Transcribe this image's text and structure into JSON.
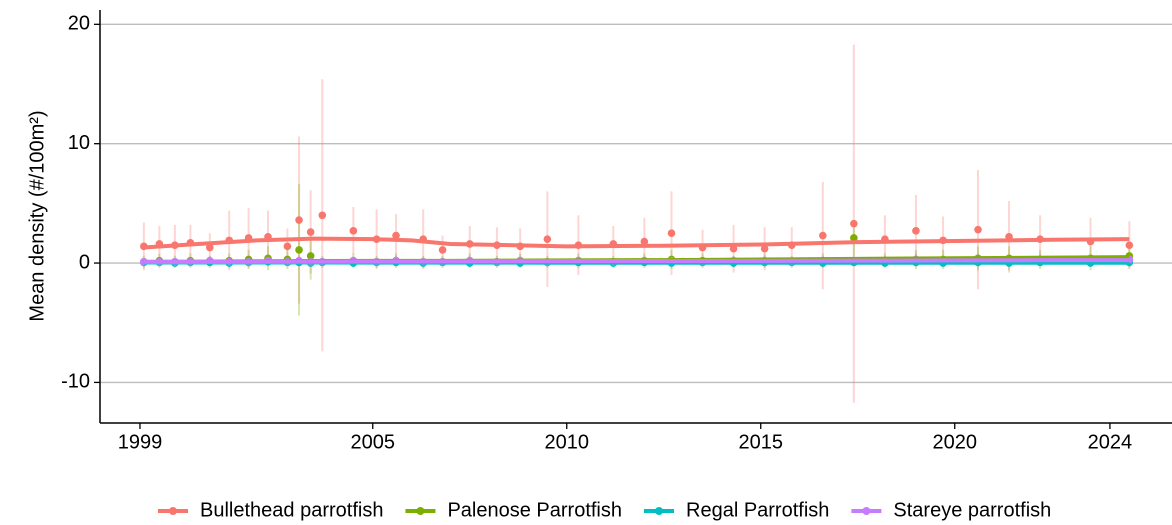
{
  "chart_data": {
    "type": "scatter",
    "y_label": "Mean density (#/100m²)",
    "xlim": [
      1997.97,
      2025.6
    ],
    "ylim": [
      -13.4,
      21.2
    ],
    "xticks": [
      1999,
      2005,
      2010,
      2015,
      2020,
      2024
    ],
    "yticks": [
      -10,
      0,
      10,
      20
    ],
    "grid": true,
    "legend": "bottom",
    "x": [
      1999.1,
      1999.5,
      1999.9,
      2000.3,
      2000.8,
      2001.3,
      2001.8,
      2002.3,
      2002.8,
      2003.1,
      2003.4,
      2003.7,
      2004.5,
      2005.1,
      2005.6,
      2006.3,
      2006.8,
      2007.5,
      2008.2,
      2008.8,
      2009.5,
      2010.3,
      2011.2,
      2012.0,
      2012.7,
      2013.5,
      2014.3,
      2015.1,
      2015.8,
      2016.6,
      2017.4,
      2018.2,
      2019.0,
      2019.7,
      2020.6,
      2021.4,
      2022.2,
      2023.5,
      2024.5
    ],
    "trend_x": [
      1999.1,
      2000.5,
      2002.0,
      2003.5,
      2005.0,
      2006.0,
      2007.0,
      2008.5,
      2010.0,
      2012.5,
      2015.0,
      2017.5,
      2020.0,
      2022.5,
      2024.5
    ],
    "series": [
      {
        "name": "Bullethead parrotfish",
        "color": "#F8766D",
        "values": [
          1.4,
          1.6,
          1.5,
          1.7,
          1.3,
          1.9,
          2.1,
          2.2,
          1.4,
          3.6,
          2.6,
          4.0,
          2.7,
          2.0,
          2.3,
          2.0,
          1.1,
          1.6,
          1.5,
          1.4,
          2.0,
          1.5,
          1.6,
          1.8,
          2.5,
          1.3,
          1.2,
          1.2,
          1.5,
          2.3,
          3.3,
          2.0,
          2.7,
          1.9,
          2.8,
          2.2,
          2.0,
          1.8,
          1.5
        ],
        "errors": [
          2,
          1.5,
          1.7,
          1.5,
          1.2,
          2.5,
          2.5,
          2.2,
          1.5,
          7,
          3.5,
          11.4,
          2,
          2.5,
          1.8,
          2.5,
          1.2,
          1.5,
          1.5,
          1.5,
          4,
          2.5,
          1.5,
          2,
          3.5,
          1.5,
          2,
          1.8,
          1.5,
          4.5,
          15,
          2,
          3,
          2,
          5,
          3,
          2,
          2,
          2
        ],
        "trend": [
          1.3,
          1.6,
          1.9,
          2.05,
          2.0,
          1.9,
          1.6,
          1.5,
          1.4,
          1.45,
          1.55,
          1.75,
          1.85,
          1.95,
          2.0
        ]
      },
      {
        "name": "Palenose Parrotfish",
        "color": "#7CAE00",
        "values": [
          0.1,
          0.2,
          0.1,
          0.2,
          0.1,
          0.2,
          0.3,
          0.4,
          0.3,
          1.1,
          0.6,
          0.1,
          0.2,
          0.1,
          0.2,
          0.1,
          0.1,
          0.2,
          0.1,
          0.2,
          0.1,
          0.2,
          0.1,
          0.2,
          0.3,
          0.2,
          0.1,
          0.2,
          0.1,
          0.2,
          2.1,
          0.2,
          0.3,
          0.3,
          0.4,
          0.4,
          0.3,
          0.4,
          0.6
        ],
        "errors": [
          0.5,
          0.6,
          0.5,
          0.6,
          0.5,
          0.6,
          0.8,
          1,
          0.8,
          5.5,
          2,
          0.5,
          0.6,
          0.5,
          0.6,
          0.5,
          0.5,
          0.6,
          0.5,
          0.6,
          0.5,
          0.6,
          0.5,
          0.6,
          0.8,
          0.6,
          0.5,
          0.6,
          0.5,
          0.6,
          1.5,
          0.6,
          0.8,
          0.8,
          1,
          1,
          0.8,
          1,
          1
        ],
        "trend": [
          0.1,
          0.12,
          0.15,
          0.17,
          0.18,
          0.18,
          0.18,
          0.2,
          0.22,
          0.25,
          0.3,
          0.35,
          0.4,
          0.45,
          0.5
        ]
      },
      {
        "name": "Regal Parrotfish",
        "color": "#00BFC4",
        "values": [
          0.05,
          0.05,
          0.0,
          0.05,
          0.05,
          0.0,
          0.05,
          0.1,
          0.05,
          0.05,
          0.0,
          0.05,
          0.0,
          0.05,
          0.05,
          0.0,
          0.05,
          0.0,
          0.05,
          0.0,
          0.05,
          0.05,
          0.0,
          0.05,
          0.0,
          0.05,
          0.0,
          0.05,
          0.05,
          0.0,
          0.05,
          0.0,
          0.05,
          0.0,
          0.05,
          0.0,
          0.05,
          0.0,
          0.05
        ],
        "errors": [
          0.2,
          0.2,
          0.1,
          0.2,
          0.2,
          0.1,
          0.2,
          0.3,
          0.2,
          0.2,
          0.1,
          0.2,
          0.1,
          0.2,
          0.2,
          0.1,
          0.2,
          0.1,
          0.2,
          0.1,
          0.2,
          0.2,
          0.1,
          0.2,
          0.1,
          0.2,
          0.1,
          0.2,
          0.2,
          0.1,
          0.2,
          0.1,
          0.2,
          0.1,
          0.2,
          0.1,
          0.2,
          0.1,
          0.2
        ],
        "trend": [
          0.05,
          0.05,
          0.05,
          0.05,
          0.04,
          0.04,
          0.04,
          0.04,
          0.03,
          0.03,
          0.03,
          0.03,
          0.03,
          0.03,
          0.03
        ]
      },
      {
        "name": "Stareye parrotfish",
        "color": "#C77CFF",
        "values": [
          0.1,
          0.1,
          0.1,
          0.1,
          0.2,
          0.1,
          0.1,
          0.2,
          0.1,
          0.2,
          0.1,
          0.1,
          0.2,
          0.1,
          0.2,
          0.1,
          0.1,
          0.2,
          0.1,
          0.2,
          0.1,
          0.2,
          0.1,
          0.2,
          0.2,
          0.1,
          0.2,
          0.2,
          0.1,
          0.2,
          0.2,
          0.2,
          0.3,
          0.2,
          0.3,
          0.2,
          0.3,
          0.2,
          0.3
        ],
        "errors": [
          0.3,
          0.3,
          0.3,
          0.3,
          0.4,
          0.3,
          0.3,
          0.4,
          0.3,
          0.4,
          0.3,
          0.3,
          0.4,
          0.3,
          0.4,
          0.3,
          0.3,
          0.4,
          0.3,
          0.4,
          0.3,
          0.4,
          0.3,
          0.4,
          0.4,
          0.3,
          0.4,
          0.4,
          0.3,
          0.4,
          0.4,
          0.4,
          0.5,
          0.4,
          0.5,
          0.4,
          0.5,
          0.4,
          0.5
        ],
        "trend": [
          0.1,
          0.1,
          0.11,
          0.12,
          0.13,
          0.13,
          0.14,
          0.15,
          0.16,
          0.17,
          0.18,
          0.2,
          0.22,
          0.24,
          0.25
        ]
      }
    ]
  }
}
